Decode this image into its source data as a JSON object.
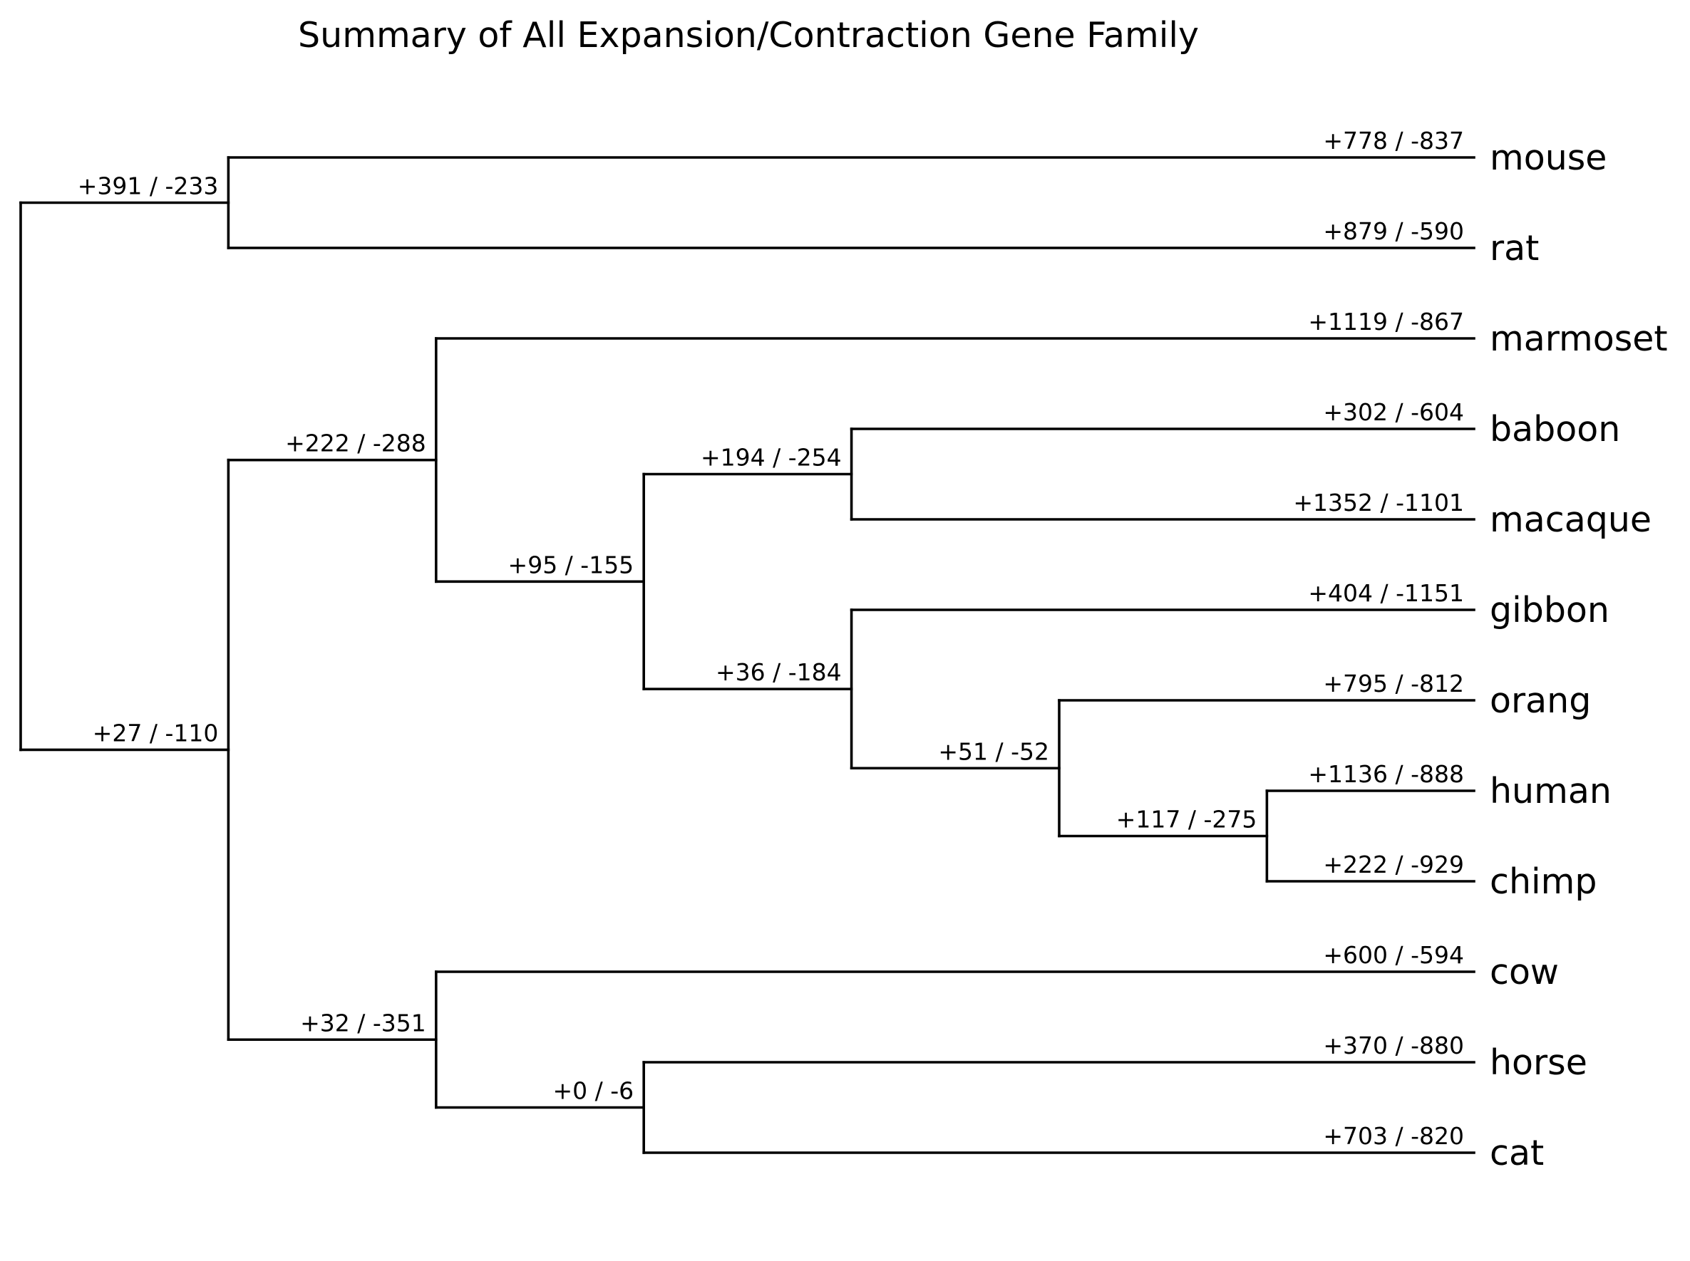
{
  "title": "Summary of All Expansion/Contraction Gene Family",
  "colors": {
    "line": "#000000",
    "text": "#000000",
    "background": "#ffffff"
  },
  "tree": {
    "label": "+27 / -110",
    "children": [
      {
        "label": "+391 / -233",
        "children": [
          {
            "name": "mouse",
            "label": "+778 / -837"
          },
          {
            "name": "rat",
            "label": "+879 / -590"
          }
        ]
      },
      {
        "label": "+27 / -110",
        "children": [
          {
            "label": "+222 / -288",
            "children": [
              {
                "name": "marmoset",
                "label": "+1119 / -867"
              },
              {
                "label": "+95 / -155",
                "children": [
                  {
                    "label": "+194 / -254",
                    "children": [
                      {
                        "name": "baboon",
                        "label": "+302 / -604"
                      },
                      {
                        "name": "macaque",
                        "label": "+1352 / -1101"
                      }
                    ]
                  },
                  {
                    "label": "+36 / -184",
                    "children": [
                      {
                        "name": "gibbon",
                        "label": "+404 / -1151"
                      },
                      {
                        "label": "+51 / -52",
                        "children": [
                          {
                            "name": "orang",
                            "label": "+795 / -812"
                          },
                          {
                            "label": "+117 / -275",
                            "children": [
                              {
                                "name": "human",
                                "label": "+1136 / -888"
                              },
                              {
                                "name": "chimp",
                                "label": "+222 / -929"
                              }
                            ]
                          }
                        ]
                      }
                    ]
                  }
                ]
              }
            ]
          },
          {
            "label": "+32 / -351",
            "children": [
              {
                "name": "cow",
                "label": "+600 / -594"
              },
              {
                "label": "+0 / -6",
                "children": [
                  {
                    "name": "horse",
                    "label": "+370 / -880"
                  },
                  {
                    "name": "cat",
                    "label": "+703 / -820"
                  }
                ]
              }
            ]
          }
        ]
      }
    ]
  }
}
